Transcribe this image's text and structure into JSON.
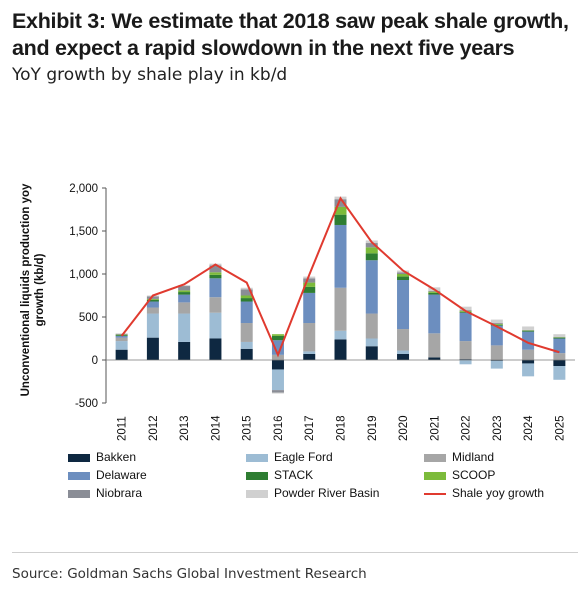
{
  "header": {
    "title": "Exhibit 3: We estimate that 2018 saw peak shale growth, and expect a rapid slowdown in the next five years",
    "subtitle": "YoY growth by shale play in kb/d"
  },
  "footer": {
    "source": "Source: Goldman Sachs Global Investment Research"
  },
  "chart_data": {
    "type": "bar",
    "stacked": true,
    "categories": [
      "2011",
      "2012",
      "2013",
      "2014",
      "2015",
      "2016",
      "2017",
      "2018",
      "2019",
      "2020",
      "2021",
      "2022",
      "2023",
      "2024",
      "2025"
    ],
    "ylabel": "Unconventional liquids production yoy growth (kb/d)",
    "ylim": [
      -500,
      2000
    ],
    "yticks": [
      -500,
      0,
      500,
      1000,
      1500,
      2000
    ],
    "ytick_labels": [
      "-500",
      "0",
      "500",
      "1,000",
      "1,500",
      "2,000"
    ],
    "grid": false,
    "legend_position": "bottom",
    "series": [
      {
        "name": "Bakken",
        "color": "#0e2841",
        "values": [
          120,
          260,
          210,
          250,
          130,
          -110,
          70,
          240,
          160,
          70,
          30,
          10,
          -10,
          -40,
          -70
        ]
      },
      {
        "name": "Eagle Ford",
        "color": "#9dbcd4",
        "values": [
          100,
          280,
          330,
          300,
          80,
          -240,
          30,
          100,
          90,
          40,
          0,
          -50,
          -90,
          -150,
          -160
        ]
      },
      {
        "name": "Midland",
        "color": "#a6a6a6",
        "values": [
          40,
          70,
          130,
          180,
          220,
          60,
          330,
          500,
          290,
          250,
          280,
          210,
          170,
          120,
          80
        ]
      },
      {
        "name": "Delaware",
        "color": "#6c8ebf",
        "values": [
          20,
          70,
          90,
          220,
          250,
          170,
          350,
          730,
          620,
          570,
          450,
          330,
          230,
          210,
          170
        ]
      },
      {
        "name": "STACK",
        "color": "#2e7d32",
        "values": [
          10,
          20,
          30,
          40,
          40,
          50,
          70,
          120,
          80,
          40,
          20,
          10,
          10,
          10,
          10
        ]
      },
      {
        "name": "SCOOP",
        "color": "#7cbb3b",
        "values": [
          5,
          10,
          20,
          30,
          30,
          20,
          50,
          90,
          70,
          30,
          15,
          10,
          10,
          5,
          5
        ]
      },
      {
        "name": "Niobrara",
        "color": "#8a8d96",
        "values": [
          10,
          30,
          50,
          80,
          70,
          -30,
          50,
          90,
          50,
          20,
          10,
          10,
          10,
          5,
          5
        ]
      },
      {
        "name": "Powder River Basin",
        "color": "#d0d0d0",
        "values": [
          5,
          10,
          10,
          20,
          20,
          -10,
          20,
          30,
          30,
          20,
          40,
          40,
          40,
          40,
          30
        ]
      }
    ],
    "line": {
      "name": "Shale yoy growth",
      "color": "#e03a2f",
      "values": [
        280,
        750,
        880,
        1110,
        900,
        60,
        990,
        1880,
        1370,
        1040,
        820,
        570,
        390,
        200,
        90
      ]
    }
  }
}
